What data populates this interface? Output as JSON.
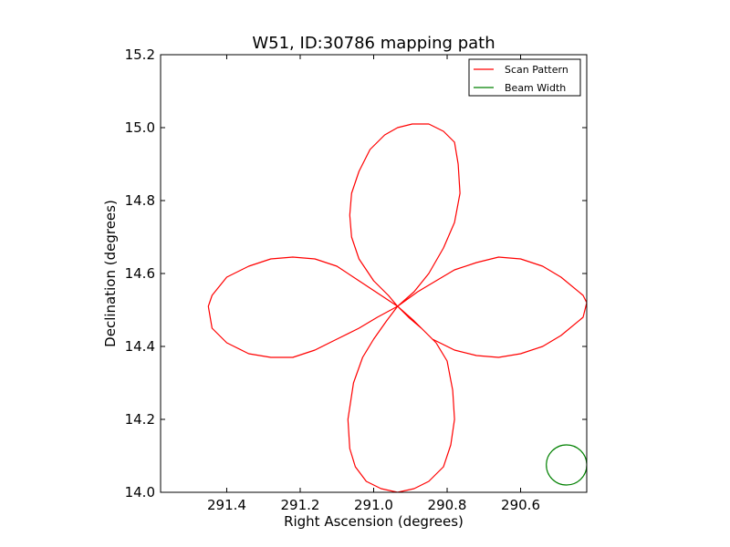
{
  "chart_data": {
    "type": "line",
    "title": "W51, ID:30786 mapping path",
    "xlabel": "Right Ascension (degrees)",
    "ylabel": "Declination (degrees)",
    "xlim": [
      291.58,
      290.42
    ],
    "ylim": [
      14.0,
      15.2
    ],
    "x_inverted": true,
    "xticks": [
      291.4,
      291.2,
      291.0,
      290.8,
      290.6
    ],
    "xtick_labels": [
      "291.4",
      "291.2",
      "291.0",
      "290.8",
      "290.6"
    ],
    "yticks": [
      14.0,
      14.2,
      14.4,
      14.6,
      14.8,
      15.0,
      15.2
    ],
    "ytick_labels": [
      "14.0",
      "14.2",
      "14.4",
      "14.6",
      "14.8",
      "15.0",
      "15.2"
    ],
    "grid": false,
    "legend_position": "top-right",
    "series": [
      {
        "name": "Scan Pattern",
        "color": "#ff0000",
        "x": [
          290.935,
          290.89,
          290.85,
          290.81,
          290.78,
          290.765,
          290.77,
          290.78,
          290.81,
          290.85,
          290.895,
          290.935,
          290.97,
          291.01,
          291.04,
          291.06,
          291.065,
          291.06,
          291.04,
          291.0,
          290.96,
          290.935,
          290.88,
          290.83,
          290.78,
          290.72,
          290.66,
          290.6,
          290.54,
          290.49,
          290.43,
          290.42,
          290.43,
          290.49,
          290.54,
          290.6,
          290.66,
          290.72,
          290.78,
          290.84,
          290.89,
          290.935,
          290.965,
          291.0,
          291.03,
          291.055,
          291.07,
          291.065,
          291.05,
          291.02,
          290.98,
          290.935,
          290.89,
          290.85,
          290.81,
          290.79,
          290.78,
          290.785,
          290.8,
          290.83,
          290.87,
          290.905,
          290.935,
          290.99,
          291.04,
          291.1,
          291.16,
          291.22,
          291.28,
          291.34,
          291.4,
          291.44,
          291.45,
          291.44,
          291.4,
          291.34,
          291.28,
          291.22,
          291.16,
          291.1,
          291.04,
          290.98,
          290.935
        ],
        "y": [
          14.51,
          14.55,
          14.6,
          14.67,
          14.74,
          14.82,
          14.9,
          14.96,
          14.99,
          15.01,
          15.01,
          15.0,
          14.98,
          14.94,
          14.88,
          14.82,
          14.76,
          14.7,
          14.64,
          14.58,
          14.54,
          14.51,
          14.55,
          14.58,
          14.61,
          14.63,
          14.645,
          14.64,
          14.62,
          14.59,
          14.54,
          14.52,
          14.48,
          14.43,
          14.4,
          14.38,
          14.37,
          14.375,
          14.39,
          14.42,
          14.47,
          14.51,
          14.47,
          14.42,
          14.37,
          14.3,
          14.2,
          14.12,
          14.07,
          14.03,
          14.01,
          14.0,
          14.01,
          14.03,
          14.07,
          14.13,
          14.2,
          14.28,
          14.36,
          14.41,
          14.45,
          14.48,
          14.51,
          14.48,
          14.45,
          14.42,
          14.39,
          14.37,
          14.37,
          14.38,
          14.41,
          14.45,
          14.51,
          14.54,
          14.59,
          14.62,
          14.64,
          14.645,
          14.64,
          14.62,
          14.58,
          14.54,
          14.51
        ]
      },
      {
        "name": "Beam Width",
        "color": "#008000",
        "shape": "circle",
        "center": [
          290.475,
          14.075
        ],
        "radius_ra": 0.055,
        "radius_dec": 0.055
      }
    ]
  }
}
